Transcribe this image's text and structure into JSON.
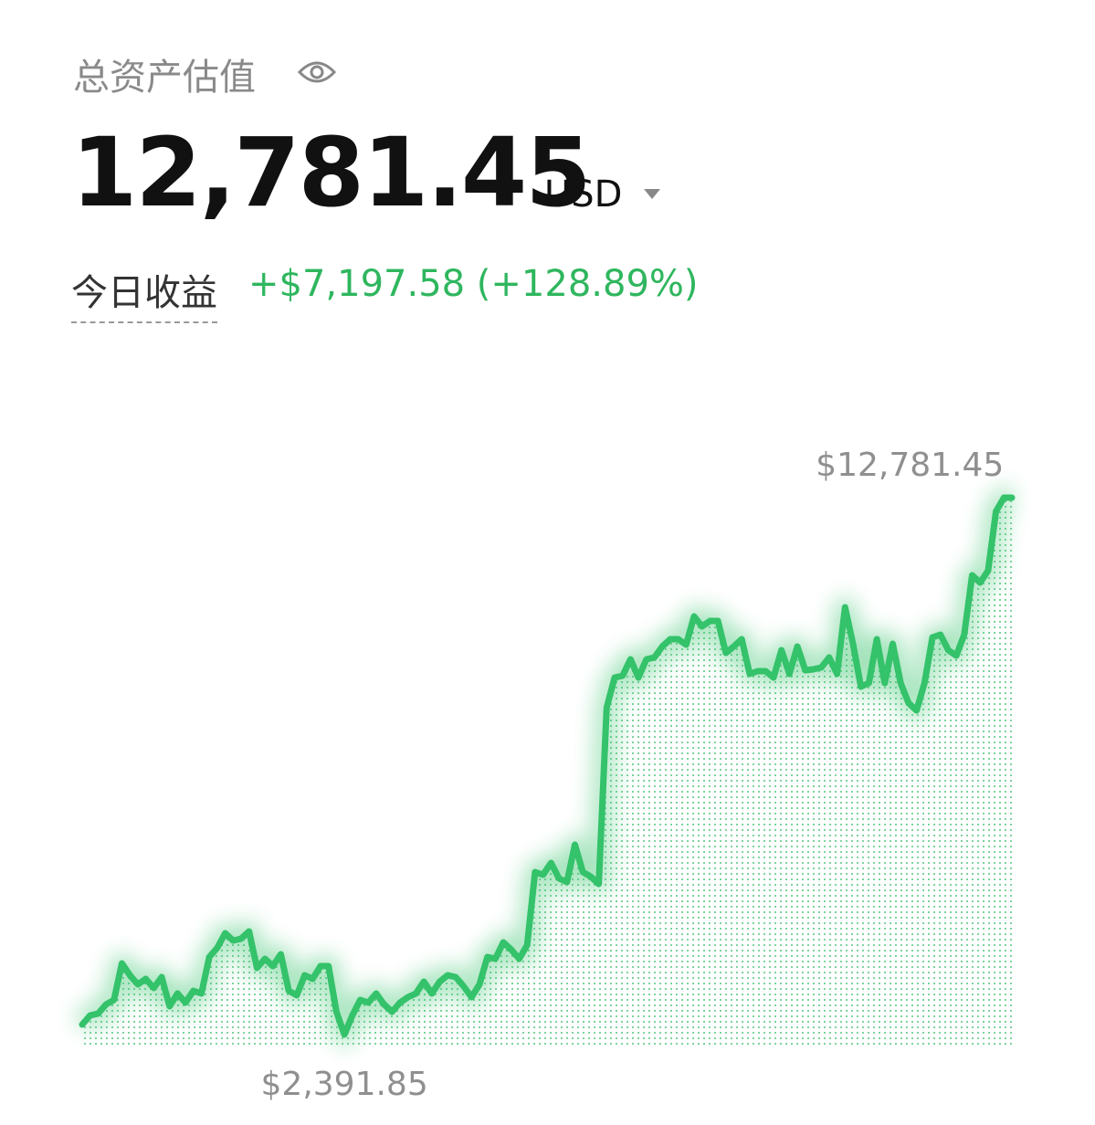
{
  "header": {
    "title": "总资产估值",
    "balance": "12,781.45",
    "currency": "USD",
    "pnl_label": "今日收益",
    "pnl_value": "+$7,197.58 (+128.89%)"
  },
  "chart_data": {
    "type": "line",
    "color": "#34c26a",
    "max_label": "$12,781.45",
    "min_label": "$2,391.85",
    "values": [
      2586,
      2763,
      2798,
      2975,
      3063,
      3770,
      3541,
      3364,
      3470,
      3293,
      3505,
      2940,
      3187,
      3010,
      3240,
      3187,
      3894,
      4071,
      4353,
      4212,
      4247,
      4389,
      3682,
      3859,
      3717,
      3947,
      3240,
      3152,
      3541,
      3470,
      3717,
      3717,
      2834,
      2391.85,
      2763,
      3063,
      3010,
      3187,
      2975,
      2834,
      3010,
      3117,
      3187,
      3417,
      3187,
      3417,
      3541,
      3505,
      3328,
      3117,
      3364,
      3894,
      3859,
      4176,
      4035,
      3859,
      4124,
      5537,
      5484,
      5714,
      5413,
      5343,
      6067,
      5537,
      5449,
      5307,
      8717,
      9301,
      9336,
      9654,
      9301,
      9654,
      9689,
      9901,
      10043,
      10043,
      9937,
      10484,
      10290,
      10396,
      10396,
      9778,
      9901,
      10043,
      9371,
      9424,
      9424,
      9301,
      9831,
      9371,
      9901,
      9442,
      9459,
      9495,
      9689,
      9371,
      10661,
      9955,
      9124,
      9195,
      10043,
      9195,
      9955,
      9195,
      8806,
      8665,
      9195,
      10078,
      10131,
      9831,
      9725,
      10131,
      11280,
      11138,
      11368,
      12516,
      12781.45,
      12781.45
    ]
  }
}
